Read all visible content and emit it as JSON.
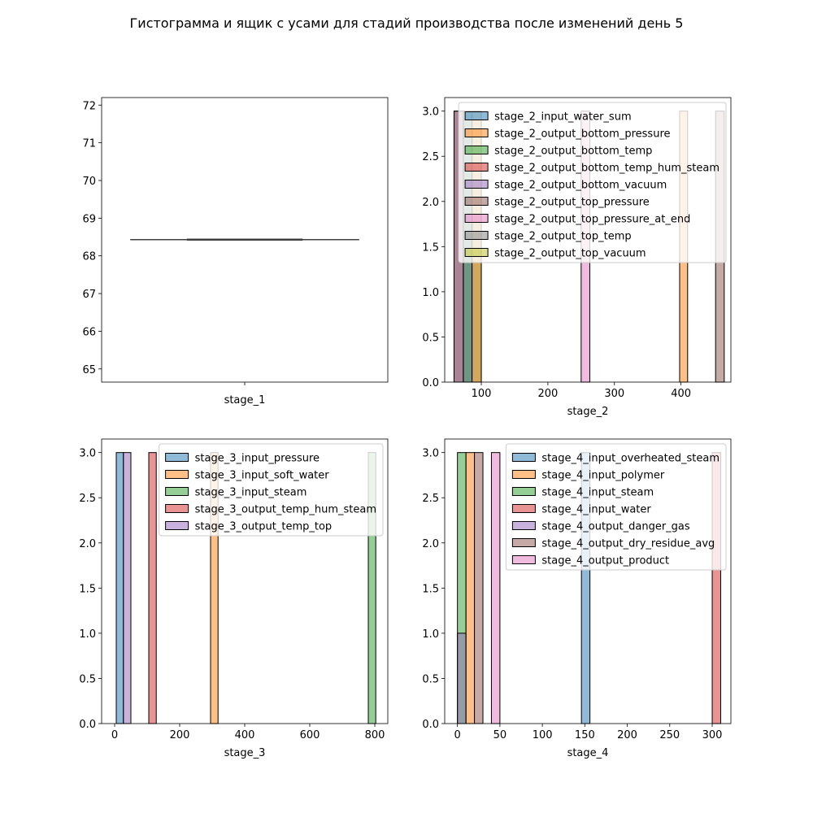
{
  "figure": {
    "title": "Гистограмма и ящик с усами для стадий производства после изменений день 5"
  },
  "colors": [
    "#1f77b4",
    "#ff7f0e",
    "#2ca02c",
    "#d62728",
    "#9467bd",
    "#8c564b",
    "#e377c2",
    "#7f7f7f",
    "#bcbd22"
  ],
  "chart_data": [
    {
      "type": "box",
      "xlabel": "stage_1",
      "ylabel": "",
      "ylim": [
        64.65,
        72.2
      ],
      "yticks": [
        65,
        66,
        67,
        68,
        69,
        70,
        71,
        72
      ],
      "ytick_labels": [
        "65",
        "66",
        "67",
        "68",
        "69",
        "70",
        "71",
        "72"
      ],
      "xtick_labels": [
        ""
      ],
      "box": {
        "value": 68.43
      }
    },
    {
      "type": "histogram",
      "xlabel": "stage_2",
      "ylabel": "",
      "xlim": [
        45,
        475
      ],
      "ylim": [
        0,
        3.15
      ],
      "xticks": [
        100,
        200,
        300,
        400
      ],
      "xtick_labels": [
        "100",
        "200",
        "300",
        "400"
      ],
      "yticks": [
        0,
        0.5,
        1.0,
        1.5,
        2.0,
        2.5,
        3.0
      ],
      "ytick_labels": [
        "0.0",
        "0.5",
        "1.0",
        "1.5",
        "2.0",
        "2.5",
        "3.0"
      ],
      "legend_position": "upper right",
      "series": [
        {
          "name": "stage_2_input_water_sum",
          "bars": [
            [
              73,
              86,
              3
            ]
          ]
        },
        {
          "name": "stage_2_output_bottom_pressure",
          "bars": [
            [
              398,
              410,
              3
            ]
          ]
        },
        {
          "name": "stage_2_output_bottom_temp",
          "bars": [
            [
              73,
              86,
              3
            ]
          ]
        },
        {
          "name": "stage_2_output_bottom_temp_hum_steam",
          "bars": [
            [
              86,
              100,
              3
            ]
          ]
        },
        {
          "name": "stage_2_output_bottom_vacuum",
          "bars": [
            [
              59,
              73,
              3
            ]
          ]
        },
        {
          "name": "stage_2_output_top_pressure",
          "bars": [
            [
              59,
              73,
              3
            ],
            [
              452,
              465,
              3
            ]
          ]
        },
        {
          "name": "stage_2_output_top_pressure_at_end",
          "bars": [
            [
              250,
              263,
              3
            ]
          ]
        },
        {
          "name": "stage_2_output_top_temp",
          "bars": [
            [
              73,
              86,
              3
            ]
          ]
        },
        {
          "name": "stage_2_output_top_vacuum",
          "bars": [
            [
              86,
              100,
              3
            ]
          ]
        }
      ]
    },
    {
      "type": "histogram",
      "xlabel": "stage_3",
      "ylabel": "",
      "xlim": [
        -40,
        840
      ],
      "ylim": [
        0,
        3.15
      ],
      "xticks": [
        0,
        200,
        400,
        600,
        800
      ],
      "xtick_labels": [
        "0",
        "200",
        "400",
        "600",
        "800"
      ],
      "yticks": [
        0,
        0.5,
        1.0,
        1.5,
        2.0,
        2.5,
        3.0
      ],
      "ytick_labels": [
        "0.0",
        "0.5",
        "1.0",
        "1.5",
        "2.0",
        "2.5",
        "3.0"
      ],
      "legend_position": "upper right",
      "series": [
        {
          "name": "stage_3_input_pressure",
          "bars": [
            [
              5,
              27,
              3
            ]
          ]
        },
        {
          "name": "stage_3_input_soft_water",
          "bars": [
            [
              295,
              318,
              3
            ]
          ]
        },
        {
          "name": "stage_3_input_steam",
          "bars": [
            [
              780,
              803,
              3
            ]
          ]
        },
        {
          "name": "stage_3_output_temp_hum_steam",
          "bars": [
            [
              105,
              128,
              3
            ]
          ]
        },
        {
          "name": "stage_3_output_temp_top",
          "bars": [
            [
              27,
              50,
              3
            ]
          ]
        }
      ]
    },
    {
      "type": "histogram",
      "xlabel": "stage_4",
      "ylabel": "",
      "xlim": [
        -15,
        322
      ],
      "ylim": [
        0,
        3.15
      ],
      "xticks": [
        0,
        50,
        100,
        150,
        200,
        250,
        300
      ],
      "xtick_labels": [
        "0",
        "50",
        "100",
        "150",
        "200",
        "250",
        "300"
      ],
      "yticks": [
        0,
        0.5,
        1.0,
        1.5,
        2.0,
        2.5,
        3.0
      ],
      "ytick_labels": [
        "0.0",
        "0.5",
        "1.0",
        "1.5",
        "2.0",
        "2.5",
        "3.0"
      ],
      "legend_position": "upper right",
      "series": [
        {
          "name": "stage_4_input_overheated_steam",
          "bars": [
            [
              146,
              156,
              3
            ]
          ]
        },
        {
          "name": "stage_4_input_polymer",
          "bars": [
            [
              10,
              20,
              3
            ]
          ]
        },
        {
          "name": "stage_4_input_steam",
          "bars": [
            [
              0,
              10,
              3
            ]
          ]
        },
        {
          "name": "stage_4_input_water",
          "bars": [
            [
              300,
              310,
              3
            ]
          ]
        },
        {
          "name": "stage_4_output_danger_gas",
          "bars": [
            [
              0,
              10,
              1
            ]
          ]
        },
        {
          "name": "stage_4_output_dry_residue_avg",
          "bars": [
            [
              20,
              30,
              3
            ]
          ]
        },
        {
          "name": "stage_4_output_product",
          "bars": [
            [
              40,
              50,
              3
            ]
          ]
        }
      ]
    }
  ]
}
